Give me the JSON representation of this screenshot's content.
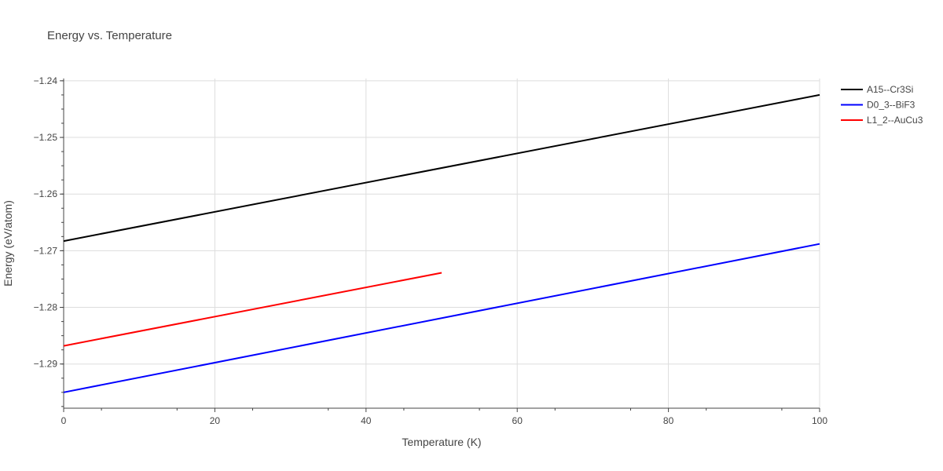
{
  "chart_data": {
    "type": "line",
    "title": "Energy vs. Temperature",
    "xlabel": "Temperature (K)",
    "ylabel": "Energy (eV/atom)",
    "xlim": [
      0,
      100
    ],
    "ylim": [
      -1.2978,
      -1.2396
    ],
    "x_ticks": [
      0,
      20,
      40,
      60,
      80,
      100
    ],
    "x_tick_labels": [
      "0",
      "20",
      "40",
      "60",
      "80",
      "100"
    ],
    "y_ticks": [
      -1.24,
      -1.25,
      -1.26,
      -1.27,
      -1.28,
      -1.29
    ],
    "y_tick_labels": [
      "−1.24",
      "−1.25",
      "−1.26",
      "−1.27",
      "−1.28",
      "−1.29"
    ],
    "grid": true,
    "legend_position": "top-right",
    "series": [
      {
        "name": "A15--Cr3Si",
        "color": "#000000",
        "x": [
          0,
          100
        ],
        "y": [
          -1.2683,
          -1.2425
        ]
      },
      {
        "name": "D0_3--BiF3",
        "color": "#0000ff",
        "x": [
          0,
          100
        ],
        "y": [
          -1.295,
          -1.2688
        ]
      },
      {
        "name": "L1_2--AuCu3",
        "color": "#ff0000",
        "x": [
          0,
          50
        ],
        "y": [
          -1.2868,
          -1.2739
        ]
      }
    ]
  }
}
